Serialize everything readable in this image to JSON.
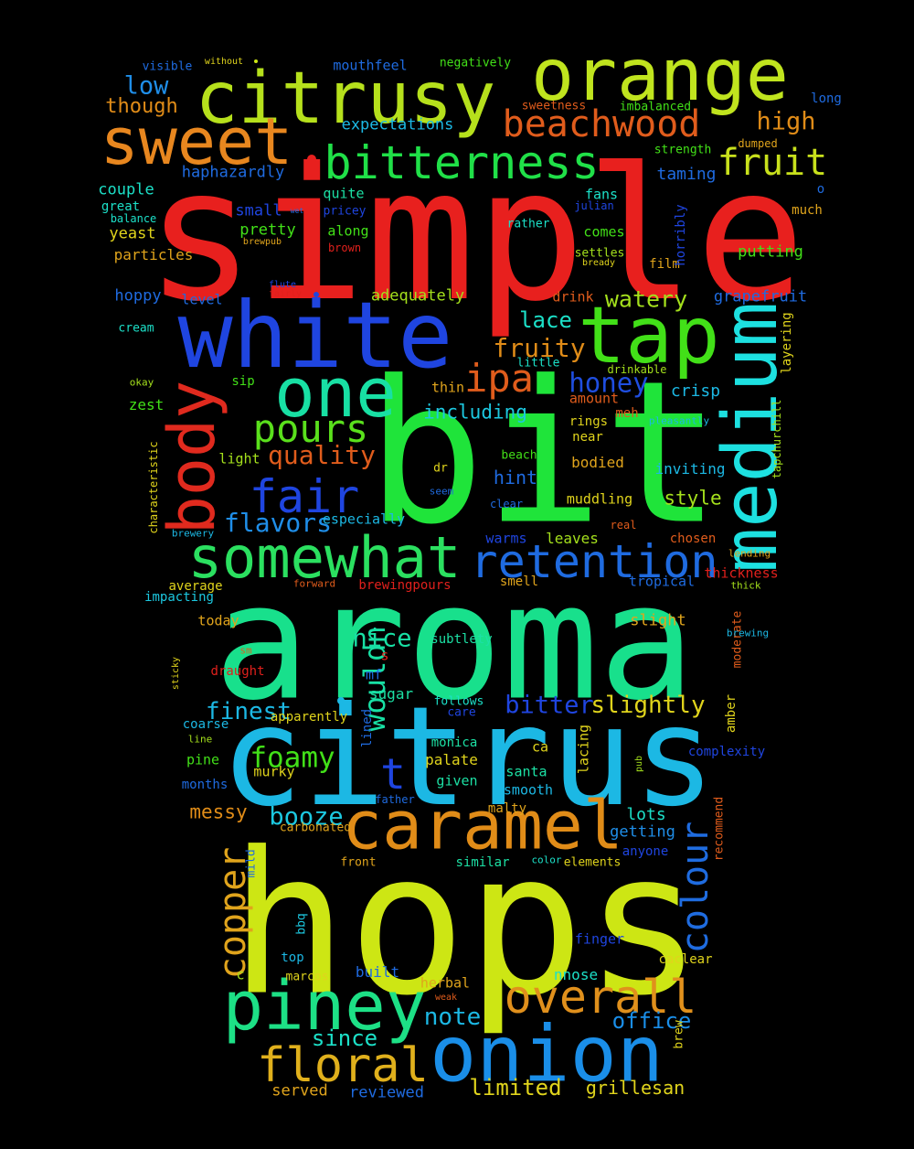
{
  "cloud": {
    "words": [
      {
        "text": "simple",
        "color": "#e8201e"
      },
      {
        "text": "bit",
        "color": "#1fe43a"
      },
      {
        "text": "aroma",
        "color": "#18e08c"
      },
      {
        "text": "hops",
        "color": "#cde614"
      },
      {
        "text": "citrus",
        "color": "#1cb8e4"
      },
      {
        "text": "white",
        "color": "#1f45e0"
      },
      {
        "text": "orange",
        "color": "#c0e41e"
      },
      {
        "text": "citrusy",
        "color": "#b6e01c"
      },
      {
        "text": "caramel",
        "color": "#e08c18"
      },
      {
        "text": "sweet",
        "color": "#e8871f"
      },
      {
        "text": "tap",
        "color": "#42e018"
      },
      {
        "text": "one",
        "color": "#18e0a4"
      },
      {
        "text": "body",
        "color": "#e02a1e"
      },
      {
        "text": "medium",
        "color": "#1de0e0"
      },
      {
        "text": "piney",
        "color": "#1de086"
      },
      {
        "text": "onion",
        "color": "#1a8ee8"
      },
      {
        "text": "somewhat",
        "color": "#2be060"
      },
      {
        "text": "retention",
        "color": "#1f6be0"
      },
      {
        "text": "bitterness",
        "color": "#20e048"
      },
      {
        "text": "beachwood",
        "color": "#e05c1c"
      },
      {
        "text": "overall",
        "color": "#e0901c"
      },
      {
        "text": "floral",
        "color": "#e0b01c"
      },
      {
        "text": "fair",
        "color": "#1f45e0"
      },
      {
        "text": "pours",
        "color": "#5ae01c"
      },
      {
        "text": "fruit",
        "color": "#c8e01c"
      },
      {
        "text": "colour",
        "color": "#1f6ce0"
      },
      {
        "text": "copper",
        "color": "#e0a41c"
      },
      {
        "text": "ipa",
        "color": "#e05c1c"
      },
      {
        "text": "wouldn",
        "color": "#18e0a4"
      },
      {
        "text": "quality",
        "color": "#e05c1c"
      },
      {
        "text": "fruity",
        "color": "#e08c18"
      },
      {
        "text": "honey",
        "color": "#1f4ee0"
      },
      {
        "text": "foamy",
        "color": "#42e018"
      },
      {
        "text": "booze",
        "color": "#1cc8e0"
      },
      {
        "text": "t",
        "color": "#1f45e0"
      },
      {
        "text": "bitter",
        "color": "#1f45e0"
      },
      {
        "text": "slightly",
        "color": "#e0d41c"
      },
      {
        "text": "finest",
        "color": "#1cb8e4"
      },
      {
        "text": "nice",
        "color": "#18e0a4"
      },
      {
        "text": "note",
        "color": "#1cb8e4"
      },
      {
        "text": "office",
        "color": "#1a8ee8"
      },
      {
        "text": "since",
        "color": "#1ce0c8"
      },
      {
        "text": "limited",
        "color": "#e0d41c"
      },
      {
        "text": "grillesan",
        "color": "#e0d41c"
      },
      {
        "text": "served",
        "color": "#e0a41c"
      },
      {
        "text": "reviewed",
        "color": "#1f6be0"
      },
      {
        "text": "flavors",
        "color": "#1f8ee8"
      },
      {
        "text": "watery",
        "color": "#a4e01c"
      },
      {
        "text": "lace",
        "color": "#1ce0c8"
      },
      {
        "text": "high",
        "color": "#e08c18"
      },
      {
        "text": "low",
        "color": "#1f8ee8"
      },
      {
        "text": "though",
        "color": "#e08c18"
      },
      {
        "text": "including",
        "color": "#1cc8e0"
      },
      {
        "text": "style",
        "color": "#a4e01c"
      },
      {
        "text": "hint",
        "color": "#1f6be0"
      },
      {
        "text": "messy",
        "color": "#e08c18"
      },
      {
        "text": "getting",
        "color": "#1f8ee8"
      },
      {
        "text": "lots",
        "color": "#1ce0c8"
      },
      {
        "text": "crisp",
        "color": "#1cb8e4"
      },
      {
        "text": "taming",
        "color": "#1f6be0"
      },
      {
        "text": "haphazardly",
        "color": "#1f6be0"
      },
      {
        "text": "expectations",
        "color": "#1cb8e4"
      },
      {
        "text": "couple",
        "color": "#1ce0c8"
      },
      {
        "text": "small",
        "color": "#1f45e0"
      },
      {
        "text": "pretty",
        "color": "#42e018"
      },
      {
        "text": "yeast",
        "color": "#e0d41c"
      },
      {
        "text": "particles",
        "color": "#e0a41c"
      },
      {
        "text": "hoppy",
        "color": "#1f6be0"
      },
      {
        "text": "adequately",
        "color": "#a4e01c"
      },
      {
        "text": "grapefruit",
        "color": "#1f6be0"
      },
      {
        "text": "putting",
        "color": "#42e018"
      },
      {
        "text": "along",
        "color": "#42e018"
      },
      {
        "text": "quite",
        "color": "#1ce0a4"
      },
      {
        "text": "fans",
        "color": "#1ce0c8"
      },
      {
        "text": "comes",
        "color": "#42e018"
      },
      {
        "text": "mouthfeel",
        "color": "#1f6be0"
      },
      {
        "text": "negatively",
        "color": "#42e018"
      },
      {
        "text": "visible",
        "color": "#1f6be0"
      },
      {
        "text": "without",
        "color": "#e0d41c"
      },
      {
        "text": "sweetness",
        "color": "#e05c1c"
      },
      {
        "text": "imbalanced",
        "color": "#42e018"
      },
      {
        "text": "long",
        "color": "#1f6be0"
      },
      {
        "text": "strength",
        "color": "#42e018"
      },
      {
        "text": "dumped",
        "color": "#e0a41c"
      },
      {
        "text": "o",
        "color": "#1f6be0"
      },
      {
        "text": "much",
        "color": "#e0a41c"
      },
      {
        "text": "julian",
        "color": "#1f45e0"
      },
      {
        "text": "rather",
        "color": "#1ce0c8"
      },
      {
        "text": "settles",
        "color": "#a4e01c"
      },
      {
        "text": "bready",
        "color": "#e0d41c"
      },
      {
        "text": "film",
        "color": "#e0a41c"
      },
      {
        "text": "horribly",
        "color": "#1f45e0"
      },
      {
        "text": "great",
        "color": "#1ce0c8"
      },
      {
        "text": "balance",
        "color": "#1ce0c8"
      },
      {
        "text": "pricey",
        "color": "#1f45e0"
      },
      {
        "text": "brewpub",
        "color": "#e0a41c"
      },
      {
        "text": "brown",
        "color": "#e0201c"
      },
      {
        "text": "flute",
        "color": "#1f45e0"
      },
      {
        "text": "fairly",
        "color": "#e0201c"
      },
      {
        "text": "level",
        "color": "#1f6be0"
      },
      {
        "text": "cream",
        "color": "#1ce0c8"
      },
      {
        "text": "okay",
        "color": "#a4e01c"
      },
      {
        "text": "sip",
        "color": "#42e018"
      },
      {
        "text": "zest",
        "color": "#42e018"
      },
      {
        "text": "drink",
        "color": "#e05c1c"
      },
      {
        "text": "little",
        "color": "#1ce0c8"
      },
      {
        "text": "drinkable",
        "color": "#a4e01c"
      },
      {
        "text": "layering",
        "color": "#e0d41c"
      },
      {
        "text": "thin",
        "color": "#e0a41c"
      },
      {
        "text": "amount",
        "color": "#e05c1c"
      },
      {
        "text": "meh",
        "color": "#e05c1c"
      },
      {
        "text": "rings",
        "color": "#e0d41c"
      },
      {
        "text": "near",
        "color": "#e0d41c"
      },
      {
        "text": "pleasantly",
        "color": "#1cb8e4"
      },
      {
        "text": "tapchurchill",
        "color": "#a4e01c"
      },
      {
        "text": "characteristic",
        "color": "#e0d41c"
      },
      {
        "text": "light",
        "color": "#a4e01c"
      },
      {
        "text": "beach",
        "color": "#42e018"
      },
      {
        "text": "bodied",
        "color": "#e0a41c"
      },
      {
        "text": "inviting",
        "color": "#1cb8e4"
      },
      {
        "text": "dr",
        "color": "#e0d41c"
      },
      {
        "text": "seem",
        "color": "#1f6be0"
      },
      {
        "text": "clear",
        "color": "#1f6be0"
      },
      {
        "text": "muddling",
        "color": "#e0d41c"
      },
      {
        "text": "brewery",
        "color": "#1cb8e4"
      },
      {
        "text": "especially",
        "color": "#1cb8e4"
      },
      {
        "text": "real",
        "color": "#e05c1c"
      },
      {
        "text": "warms",
        "color": "#1f45e0"
      },
      {
        "text": "leaves",
        "color": "#a4e01c"
      },
      {
        "text": "chosen",
        "color": "#e05c1c"
      },
      {
        "text": "lending",
        "color": "#e0a41c"
      },
      {
        "text": "average",
        "color": "#e0d41c"
      },
      {
        "text": "forward",
        "color": "#e05c1c"
      },
      {
        "text": "brewingpours",
        "color": "#e0201c"
      },
      {
        "text": "smell",
        "color": "#e0a41c"
      },
      {
        "text": "tropical",
        "color": "#1f6be0"
      },
      {
        "text": "thickness",
        "color": "#e0201c"
      },
      {
        "text": "thick",
        "color": "#a4e01c"
      },
      {
        "text": "impacting",
        "color": "#1cc8e0"
      },
      {
        "text": "today",
        "color": "#e0a41c"
      },
      {
        "text": "slight",
        "color": "#e0a41c"
      },
      {
        "text": "moderate",
        "color": "#e05c1c"
      },
      {
        "text": "brewing",
        "color": "#1cb8e4"
      },
      {
        "text": "sm",
        "color": "#e05c1c"
      },
      {
        "text": "s",
        "color": "#e0201c"
      },
      {
        "text": "subtlety",
        "color": "#1ce0a4"
      },
      {
        "text": "sticky",
        "color": "#e0d41c"
      },
      {
        "text": "draught",
        "color": "#e0201c"
      },
      {
        "text": "mf",
        "color": "#1f6be0"
      },
      {
        "text": "sugar",
        "color": "#1ce0a4"
      },
      {
        "text": "follows",
        "color": "#1ce0c8"
      },
      {
        "text": "care",
        "color": "#1f45e0"
      },
      {
        "text": "apparently",
        "color": "#e0d41c"
      },
      {
        "text": "amber",
        "color": "#e0d41c"
      },
      {
        "text": "coarse",
        "color": "#1cb8e4"
      },
      {
        "text": "line",
        "color": "#a4e01c"
      },
      {
        "text": "lined",
        "color": "#1f6be0"
      },
      {
        "text": "monica",
        "color": "#1ce0a4"
      },
      {
        "text": "lacing",
        "color": "#e0d41c"
      },
      {
        "text": "ca",
        "color": "#e0d41c"
      },
      {
        "text": "pub",
        "color": "#a4e01c"
      },
      {
        "text": "complexity",
        "color": "#1f45e0"
      },
      {
        "text": "pine",
        "color": "#42e018"
      },
      {
        "text": "murky",
        "color": "#e0d41c"
      },
      {
        "text": "palate",
        "color": "#e0d41c"
      },
      {
        "text": "santa",
        "color": "#1ce0a4"
      },
      {
        "text": "months",
        "color": "#1f6be0"
      },
      {
        "text": "given",
        "color": "#1ce0a4"
      },
      {
        "text": "smooth",
        "color": "#1cb8e4"
      },
      {
        "text": "father",
        "color": "#1f6be0"
      },
      {
        "text": "malty",
        "color": "#e0a41c"
      },
      {
        "text": "recommend",
        "color": "#e05c1c"
      },
      {
        "text": "carbonated",
        "color": "#e0a41c"
      },
      {
        "text": "anyone",
        "color": "#1f45e0"
      },
      {
        "text": "mild",
        "color": "#1f6be0"
      },
      {
        "text": "front",
        "color": "#e0a41c"
      },
      {
        "text": "similar",
        "color": "#1ce0a4"
      },
      {
        "text": "color",
        "color": "#1ce0c8"
      },
      {
        "text": "elements",
        "color": "#e0d41c"
      },
      {
        "text": "bbq",
        "color": "#1cc8e0"
      },
      {
        "text": "finger",
        "color": "#1f45e0"
      },
      {
        "text": "caclear",
        "color": "#e0d41c"
      },
      {
        "text": "top",
        "color": "#1cb8e4"
      },
      {
        "text": "c",
        "color": "#a4e01c"
      },
      {
        "text": "marcos",
        "color": "#e0d41c"
      },
      {
        "text": "built",
        "color": "#1f6be0"
      },
      {
        "text": "nnose",
        "color": "#1ce0c8"
      },
      {
        "text": "herbal",
        "color": "#e0a41c"
      },
      {
        "text": "weak",
        "color": "#e05c1c"
      },
      {
        "text": "brew",
        "color": "#e0d41c"
      },
      {
        "text": "wet",
        "color": "#1f6be0"
      },
      {
        "text": "m",
        "color": "#e0d41c"
      }
    ]
  }
}
